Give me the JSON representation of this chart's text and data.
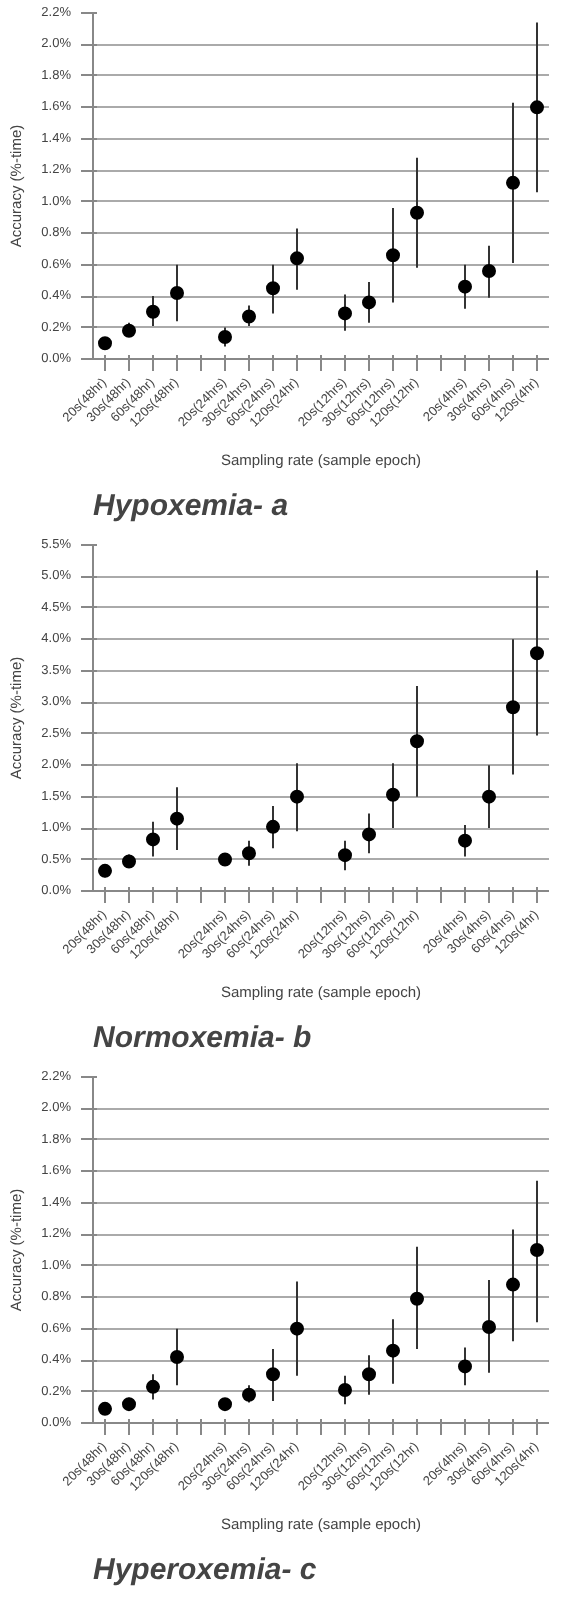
{
  "chart_data": [
    {
      "type": "scatter",
      "title": "Hypoxemia- a",
      "xlabel": "Sampling rate (sample epoch)",
      "ylabel": "Accuracy (%-time)",
      "color": "#000000",
      "marker": "circle",
      "grid": "y",
      "categories": [
        "20s(48hr)",
        "30s(48hr)",
        "60s(48hr)",
        "120s(48hr)",
        null,
        "20s(24hrs)",
        "30s(24hrs)",
        "60s(24hrs)",
        "120s(24hr)",
        null,
        "20s(12hrs)",
        "30s(12hrs)",
        "60s(12hrs)",
        "120s(12hr)",
        null,
        "20s(4hrs)",
        "30s(4hrs)",
        "60s(4hrs)",
        "120s(4hr)"
      ],
      "values": [
        0.1,
        0.18,
        0.3,
        0.42,
        null,
        0.14,
        0.27,
        0.45,
        0.64,
        null,
        0.29,
        0.36,
        0.66,
        0.93,
        null,
        0.46,
        0.56,
        1.12,
        1.6
      ],
      "errors": [
        [
          0.07,
          0.13
        ],
        [
          0.14,
          0.23
        ],
        [
          0.21,
          0.4
        ],
        [
          0.24,
          0.6
        ],
        null,
        [
          0.08,
          0.2
        ],
        [
          0.21,
          0.34
        ],
        [
          0.29,
          0.6
        ],
        [
          0.44,
          0.83
        ],
        null,
        [
          0.18,
          0.41
        ],
        [
          0.23,
          0.49
        ],
        [
          0.36,
          0.96
        ],
        [
          0.58,
          1.28
        ],
        null,
        [
          0.32,
          0.6
        ],
        [
          0.39,
          0.72
        ],
        [
          0.61,
          1.63
        ],
        [
          1.06,
          2.14
        ]
      ],
      "ylim": [
        0,
        2.2
      ],
      "yticks": [
        {
          "value": 0,
          "label": "0.0%"
        },
        {
          "value": 0.2,
          "label": "0.2%"
        },
        {
          "value": 0.4,
          "label": "0.4%"
        },
        {
          "value": 0.6,
          "label": "0.6%"
        },
        {
          "value": 0.8,
          "label": "0.8%"
        },
        {
          "value": 1.0,
          "label": "1.0%"
        },
        {
          "value": 1.2,
          "label": "1.2%"
        },
        {
          "value": 1.4,
          "label": "1.4%"
        },
        {
          "value": 1.6,
          "label": "1.6%"
        },
        {
          "value": 1.8,
          "label": "1.8%"
        },
        {
          "value": 2.0,
          "label": "2.0%"
        },
        {
          "value": 2.2,
          "label": "2.2%"
        }
      ]
    },
    {
      "type": "scatter",
      "title": "Normoxemia- b",
      "xlabel": "Sampling rate (sample epoch)",
      "ylabel": "Accuracy (%-time)",
      "color": "#000000",
      "marker": "circle",
      "grid": "y",
      "categories": [
        "20s(48hr)",
        "30s(48hr)",
        "60s(48hr)",
        "120s(48hr)",
        null,
        "20s(24hrs)",
        "30s(24hrs)",
        "60s(24hrs)",
        "120s(24hr)",
        null,
        "20s(12hrs)",
        "30s(12hrs)",
        "60s(12hrs)",
        "120s(12hr)",
        null,
        "20s(4hrs)",
        "30s(4hrs)",
        "60s(4hrs)",
        "120s(4hr)"
      ],
      "values": [
        0.32,
        0.47,
        0.82,
        1.15,
        null,
        0.5,
        0.6,
        1.02,
        1.5,
        null,
        0.57,
        0.9,
        1.53,
        2.38,
        null,
        0.8,
        1.5,
        2.92,
        3.78
      ],
      "errors": [
        [
          0.22,
          0.42
        ],
        [
          0.38,
          0.58
        ],
        [
          0.55,
          1.1
        ],
        [
          0.65,
          1.65
        ],
        null,
        [
          0.4,
          0.6
        ],
        [
          0.4,
          0.8
        ],
        [
          0.68,
          1.35
        ],
        [
          0.95,
          2.03
        ],
        null,
        [
          0.33,
          0.8
        ],
        [
          0.6,
          1.23
        ],
        [
          1.0,
          2.03
        ],
        [
          1.5,
          3.26
        ],
        null,
        [
          0.55,
          1.05
        ],
        [
          1.0,
          2.0
        ],
        [
          1.85,
          4.0
        ],
        [
          2.47,
          5.1
        ]
      ],
      "ylim": [
        0,
        5.5
      ],
      "yticks": [
        {
          "value": 0,
          "label": "0.0%"
        },
        {
          "value": 0.5,
          "label": "0.5%"
        },
        {
          "value": 1.0,
          "label": "1.0%"
        },
        {
          "value": 1.5,
          "label": "1.5%"
        },
        {
          "value": 2.0,
          "label": "2.0%"
        },
        {
          "value": 2.5,
          "label": "2.5%"
        },
        {
          "value": 3.0,
          "label": "3.0%"
        },
        {
          "value": 3.5,
          "label": "3.5%"
        },
        {
          "value": 4.0,
          "label": "4.0%"
        },
        {
          "value": 4.5,
          "label": "4.5%"
        },
        {
          "value": 5.0,
          "label": "5.0%"
        },
        {
          "value": 5.5,
          "label": "5.5%"
        }
      ]
    },
    {
      "type": "scatter",
      "title": "Hyperoxemia- c",
      "xlabel": "Sampling rate (sample epoch)",
      "ylabel": "Accuracy (%-time)",
      "color": "#000000",
      "marker": "circle",
      "grid": "y",
      "categories": [
        "20s(48hr)",
        "30s(48hr)",
        "60s(48hr)",
        "120s(48hr)",
        null,
        "20s(24hrs)",
        "30s(24hrs)",
        "60s(24hrs)",
        "120s(24hr)",
        null,
        "20s(12hrs)",
        "30s(12hrs)",
        "60s(12hrs)",
        "120s(12hr)",
        null,
        "20s(4hrs)",
        "30s(4hrs)",
        "60s(4hrs)",
        "120s(4hr)"
      ],
      "values": [
        0.09,
        0.12,
        0.23,
        0.42,
        null,
        0.12,
        0.18,
        0.31,
        0.6,
        null,
        0.21,
        0.31,
        0.46,
        0.79,
        null,
        0.36,
        0.61,
        0.88,
        1.1
      ],
      "errors": [
        [
          0.07,
          0.11
        ],
        [
          0.08,
          0.16
        ],
        [
          0.15,
          0.31
        ],
        [
          0.24,
          0.6
        ],
        null,
        [
          0.09,
          0.15
        ],
        [
          0.13,
          0.24
        ],
        [
          0.14,
          0.47
        ],
        [
          0.3,
          0.9
        ],
        null,
        [
          0.12,
          0.3
        ],
        [
          0.18,
          0.43
        ],
        [
          0.25,
          0.66
        ],
        [
          0.47,
          1.12
        ],
        null,
        [
          0.24,
          0.48
        ],
        [
          0.32,
          0.91
        ],
        [
          0.52,
          1.23
        ],
        [
          0.64,
          1.54
        ]
      ],
      "ylim": [
        0,
        2.2
      ],
      "yticks": [
        {
          "value": 0,
          "label": "0.0%"
        },
        {
          "value": 0.2,
          "label": "0.2%"
        },
        {
          "value": 0.4,
          "label": "0.4%"
        },
        {
          "value": 0.6,
          "label": "0.6%"
        },
        {
          "value": 0.8,
          "label": "0.8%"
        },
        {
          "value": 1.0,
          "label": "1.0%"
        },
        {
          "value": 1.2,
          "label": "1.2%"
        },
        {
          "value": 1.4,
          "label": "1.4%"
        },
        {
          "value": 1.6,
          "label": "1.6%"
        },
        {
          "value": 1.8,
          "label": "1.8%"
        },
        {
          "value": 2.0,
          "label": "2.0%"
        },
        {
          "value": 2.2,
          "label": "2.2%"
        }
      ]
    }
  ]
}
